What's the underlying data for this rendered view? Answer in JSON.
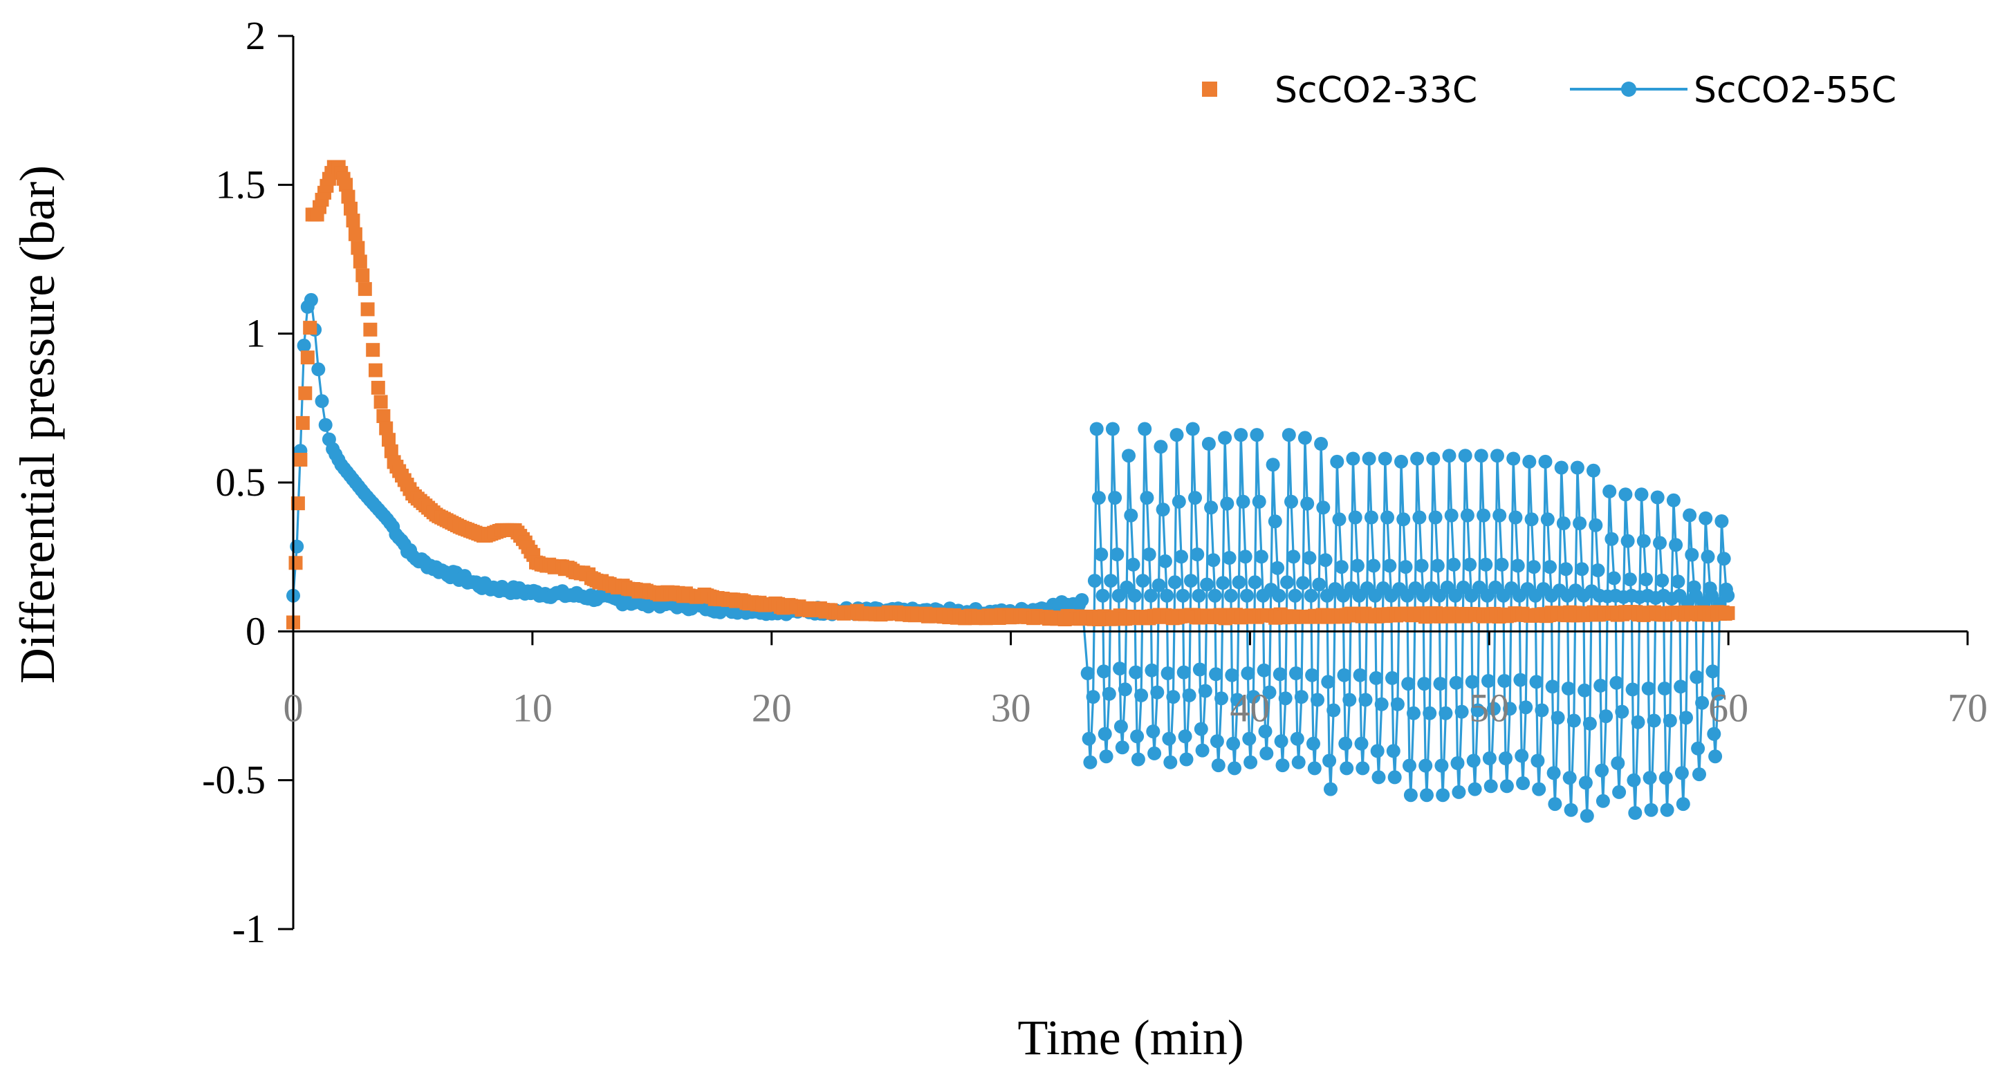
{
  "chart_data": {
    "type": "scatter",
    "title": "",
    "xlabel": "Time (min)",
    "ylabel": "Differential pressure (bar)",
    "xlim": [
      0,
      70
    ],
    "ylim": [
      -1,
      2
    ],
    "x_ticks": [
      0,
      10,
      20,
      30,
      40,
      50,
      60,
      70
    ],
    "x_tick_labels": [
      "0",
      "10",
      "20",
      "30",
      "40",
      "50",
      "60",
      "70"
    ],
    "y_ticks": [
      -1,
      -0.5,
      0,
      0.5,
      1,
      1.5,
      2
    ],
    "y_tick_labels": [
      "-1",
      "-0.5",
      "0",
      "0.5",
      "1",
      "1.5",
      "2"
    ],
    "grid": false,
    "legend_position": "top-right",
    "colors": {
      "orange": "#ED7D31",
      "blue": "#2E9BD6"
    },
    "series": [
      {
        "name": "ScCO2-33C",
        "style": "markers-square",
        "color": "#ED7D31",
        "key_points": [
          [
            0,
            0.03
          ],
          [
            0.2,
            0.43
          ],
          [
            0.35,
            0.65
          ],
          [
            0.5,
            0.8
          ],
          [
            0.6,
            0.92
          ],
          [
            0.7,
            1.02
          ],
          [
            0.8,
            1.4
          ],
          [
            1.0,
            1.4
          ],
          [
            1.2,
            1.45
          ],
          [
            1.5,
            1.52
          ],
          [
            1.7,
            1.56
          ],
          [
            1.9,
            1.56
          ],
          [
            2.2,
            1.5
          ],
          [
            2.5,
            1.38
          ],
          [
            3.0,
            1.15
          ],
          [
            3.5,
            0.84
          ],
          [
            3.8,
            0.71
          ],
          [
            4.2,
            0.57
          ],
          [
            5.0,
            0.46
          ],
          [
            6.0,
            0.39
          ],
          [
            7.0,
            0.35
          ],
          [
            8.0,
            0.32
          ],
          [
            8.7,
            0.34
          ],
          [
            9.3,
            0.34
          ],
          [
            9.7,
            0.3
          ],
          [
            10.2,
            0.23
          ],
          [
            12.0,
            0.2
          ],
          [
            13.0,
            0.16
          ],
          [
            15.0,
            0.13
          ],
          [
            17.0,
            0.12
          ],
          [
            19.0,
            0.1
          ],
          [
            21.0,
            0.08
          ],
          [
            23.0,
            0.065
          ],
          [
            25.0,
            0.06
          ],
          [
            28.0,
            0.05
          ],
          [
            30.0,
            0.05
          ],
          [
            33.0,
            0.045
          ],
          [
            36.0,
            0.05
          ],
          [
            40.0,
            0.05
          ],
          [
            45.0,
            0.055
          ],
          [
            50.0,
            0.055
          ],
          [
            55.0,
            0.06
          ],
          [
            60.0,
            0.06
          ]
        ]
      },
      {
        "name": "ScCO2-55C",
        "style": "line-with-markers",
        "color": "#2E9BD6",
        "key_points": [
          [
            0,
            0.12
          ],
          [
            0.2,
            0.34
          ],
          [
            0.35,
            0.74
          ],
          [
            0.5,
            1.07
          ],
          [
            0.65,
            1.1
          ],
          [
            0.8,
            1.12
          ],
          [
            0.95,
            0.96
          ],
          [
            1.1,
            0.84
          ],
          [
            1.25,
            0.74
          ],
          [
            1.4,
            0.67
          ],
          [
            1.6,
            0.62
          ],
          [
            2.0,
            0.56
          ],
          [
            3.0,
            0.46
          ],
          [
            4.0,
            0.37
          ],
          [
            5.0,
            0.25
          ],
          [
            6.0,
            0.21
          ],
          [
            7.0,
            0.18
          ],
          [
            8.0,
            0.15
          ],
          [
            10.0,
            0.13
          ],
          [
            12.0,
            0.12
          ],
          [
            14.0,
            0.1
          ],
          [
            16.0,
            0.09
          ],
          [
            18.0,
            0.075
          ],
          [
            20.0,
            0.07
          ],
          [
            22.0,
            0.07
          ],
          [
            25.0,
            0.065
          ],
          [
            28.0,
            0.065
          ],
          [
            30.0,
            0.06
          ],
          [
            33.0,
            0.1
          ]
        ],
        "oscillation": {
          "start_min": 33.2,
          "end_min": 60.0,
          "period_min": 1.04,
          "peak_values": [
            0.68,
            0.68,
            0.59,
            0.68,
            0.62,
            0.66,
            0.68,
            0.63,
            0.65,
            0.66,
            0.66,
            0.56,
            0.66,
            0.65,
            0.63,
            0.57,
            0.58,
            0.58,
            0.58,
            0.57,
            0.58,
            0.58,
            0.59,
            0.59,
            0.59,
            0.59,
            0.58,
            0.57,
            0.57,
            0.55,
            0.55,
            0.54,
            0.47,
            0.46,
            0.46,
            0.45,
            0.44,
            0.39,
            0.38,
            0.37
          ],
          "trough_values": [
            -0.44,
            -0.42,
            -0.39,
            -0.43,
            -0.41,
            -0.44,
            -0.43,
            -0.4,
            -0.45,
            -0.46,
            -0.44,
            -0.41,
            -0.45,
            -0.44,
            -0.46,
            -0.53,
            -0.46,
            -0.46,
            -0.49,
            -0.49,
            -0.55,
            -0.55,
            -0.55,
            -0.54,
            -0.53,
            -0.52,
            -0.52,
            -0.51,
            -0.53,
            -0.58,
            -0.6,
            -0.62,
            -0.57,
            -0.54,
            -0.61,
            -0.6,
            -0.6,
            -0.58,
            -0.48,
            -0.42
          ]
        }
      }
    ]
  }
}
